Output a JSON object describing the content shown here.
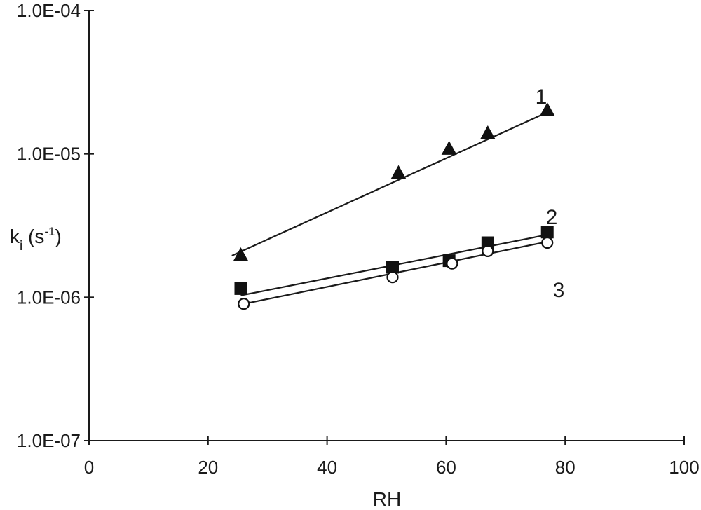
{
  "chart_data": {
    "type": "scatter",
    "xlabel": "RH",
    "ylabel": {
      "main": "k",
      "sub": "i",
      "unit_open": " (s",
      "unit_sup": "-1",
      "unit_close": ")"
    },
    "xlim": [
      0,
      100
    ],
    "ylim": [
      1e-07,
      0.0001
    ],
    "yscale": "log",
    "x_ticks": [
      0,
      20,
      40,
      60,
      80,
      100
    ],
    "x_tick_labels": [
      "0",
      "20",
      "40",
      "60",
      "80",
      "100"
    ],
    "y_ticks": [
      1e-07,
      1e-06,
      1e-05,
      0.0001
    ],
    "y_tick_labels": [
      "1.0E-07",
      "1.0E-06",
      "1.0E-05",
      "1.0E-04"
    ],
    "grid": false,
    "legend": "none",
    "series": [
      {
        "label": "1",
        "marker": "triangle",
        "x": [
          25.5,
          52,
          60.5,
          67,
          77
        ],
        "y": [
          1.95e-06,
          7.3e-06,
          1.08e-05,
          1.38e-05,
          2e-05
        ],
        "fit": {
          "x": [
            24,
            77
          ],
          "y": [
            1.95e-06,
            1.95e-05
          ]
        }
      },
      {
        "label": "2",
        "marker": "square",
        "x": [
          25.5,
          51,
          60.5,
          67,
          77
        ],
        "y": [
          1.15e-06,
          1.62e-06,
          1.8e-06,
          2.4e-06,
          2.85e-06
        ],
        "fit": {
          "x": [
            25.5,
            77
          ],
          "y": [
            1.03e-06,
            2.73e-06
          ]
        }
      },
      {
        "label": "3",
        "marker": "circle-open",
        "x": [
          26,
          51,
          61,
          67,
          77
        ],
        "y": [
          9e-07,
          1.38e-06,
          1.72e-06,
          2.1e-06,
          2.4e-06
        ],
        "fit": {
          "x": [
            25.5,
            77
          ],
          "y": [
            8.9e-07,
            2.44e-06
          ]
        }
      }
    ]
  }
}
